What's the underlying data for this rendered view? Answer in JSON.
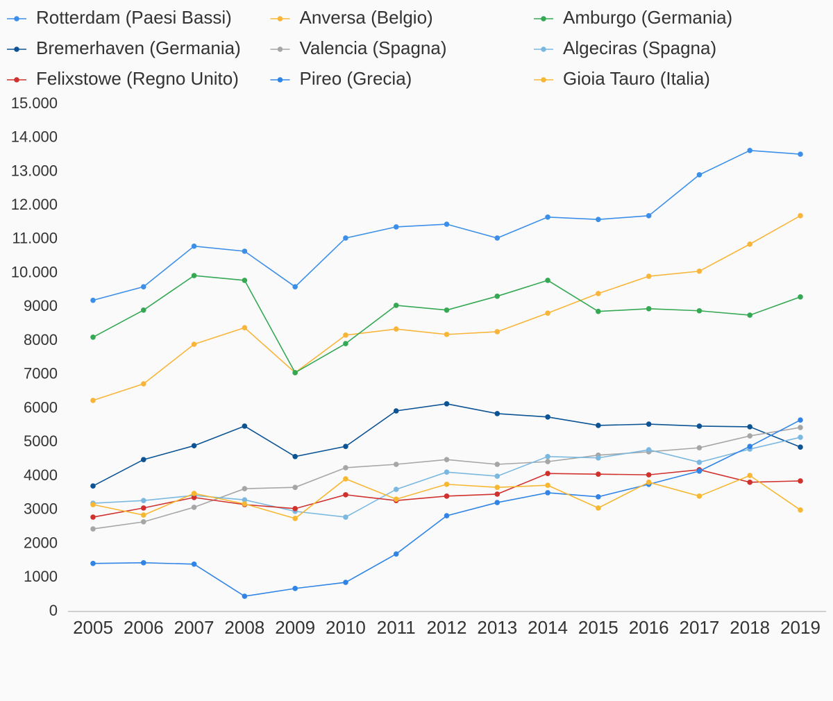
{
  "chart_data": {
    "type": "line",
    "categories": [
      "2005",
      "2006",
      "2007",
      "2008",
      "2009",
      "2010",
      "2011",
      "2012",
      "2013",
      "2014",
      "2015",
      "2016",
      "2017",
      "2018",
      "2019"
    ],
    "series": [
      {
        "name": "Rotterdam (Paesi Bassi)",
        "color": "#3b8fe8",
        "values": [
          9200,
          9600,
          10800,
          10650,
          9600,
          11040,
          11370,
          11450,
          11040,
          11660,
          11590,
          11700,
          12910,
          13630,
          13520
        ]
      },
      {
        "name": "Anversa (Belgio)",
        "color": "#f9b53a",
        "values": [
          6240,
          6730,
          7900,
          8390,
          7060,
          8170,
          8350,
          8190,
          8270,
          8820,
          9400,
          9910,
          10060,
          10860,
          11700
        ]
      },
      {
        "name": "Amburgo (Germania)",
        "color": "#34a853",
        "values": [
          8110,
          8910,
          9930,
          9790,
          7060,
          7920,
          9050,
          8910,
          9320,
          9790,
          8870,
          8950,
          8890,
          8760,
          9300
        ]
      },
      {
        "name": "Bremerhaven (Germania)",
        "color": "#0b5394",
        "values": [
          3710,
          4490,
          4900,
          5480,
          4580,
          4880,
          5930,
          6140,
          5850,
          5750,
          5500,
          5540,
          5480,
          5460,
          4860
        ]
      },
      {
        "name": "Valencia (Spagna)",
        "color": "#a6a6a6",
        "values": [
          2440,
          2650,
          3080,
          3630,
          3670,
          4250,
          4350,
          4490,
          4350,
          4430,
          4620,
          4720,
          4840,
          5190,
          5440
        ]
      },
      {
        "name": "Algeciras (Spagna)",
        "color": "#7ab8e0",
        "values": [
          3200,
          3280,
          3430,
          3300,
          2960,
          2790,
          3610,
          4120,
          4000,
          4580,
          4540,
          4780,
          4410,
          4800,
          5150
        ]
      },
      {
        "name": "Felixstowe (Regno Unito)",
        "color": "#d0312d",
        "values": [
          2790,
          3060,
          3370,
          3160,
          3040,
          3450,
          3280,
          3410,
          3470,
          4080,
          4060,
          4040,
          4190,
          3820,
          3860
        ]
      },
      {
        "name": "Pireo (Grecia)",
        "color": "#2f84e6",
        "values": [
          1420,
          1440,
          1400,
          450,
          680,
          860,
          1700,
          2830,
          3220,
          3510,
          3390,
          3760,
          4150,
          4880,
          5660
        ]
      },
      {
        "name": "Gioia Tauro (Italia)",
        "color": "#f7b731",
        "values": [
          3160,
          2850,
          3490,
          3180,
          2750,
          3920,
          3320,
          3760,
          3670,
          3730,
          3060,
          3820,
          3410,
          4020,
          3000
        ]
      }
    ],
    "ylim": [
      0,
      15000
    ],
    "yticks": [
      0,
      1000,
      2000,
      3000,
      4000,
      5000,
      6000,
      7000,
      8000,
      9000,
      {
        "value": 10000,
        "label": "10.000"
      },
      {
        "value": 11000,
        "label": "11.000"
      },
      {
        "value": 12000,
        "label": "12.000"
      },
      {
        "value": 13000,
        "label": "13.000"
      },
      {
        "value": 14000,
        "label": "14.000"
      },
      {
        "value": 15000,
        "label": "15.000"
      }
    ],
    "grid": false,
    "legend": "top"
  }
}
